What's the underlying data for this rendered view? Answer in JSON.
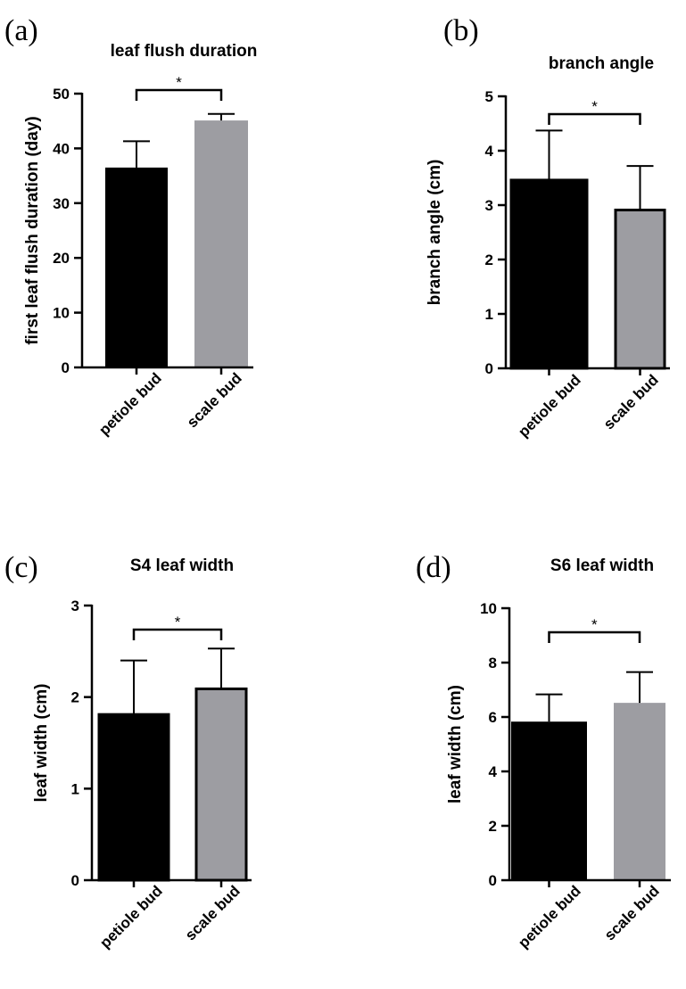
{
  "chart_data": [
    {
      "type": "bar",
      "panel": "(a)",
      "title": "leaf flush duration",
      "ylabel": "first leaf flush duration (day)",
      "xlabel": "",
      "categories": [
        "petiole bud",
        "scale bud"
      ],
      "values": [
        36.5,
        45.1
      ],
      "errors": [
        4.8,
        1.2
      ],
      "ylim": [
        0,
        50
      ],
      "yticks": [
        0,
        10,
        20,
        30,
        40,
        50
      ],
      "significance": "*",
      "colors": [
        "#000000",
        "#9d9da2"
      ],
      "bar_outline": false,
      "grid": false
    },
    {
      "type": "bar",
      "panel": "(b)",
      "title": "branch angle",
      "ylabel": "branch angle (cm)",
      "xlabel": "",
      "categories": [
        "petiole bud",
        "scale bud"
      ],
      "values": [
        3.46,
        2.91
      ],
      "errors": [
        0.91,
        0.81
      ],
      "ylim": [
        0,
        5
      ],
      "yticks": [
        0,
        1,
        2,
        3,
        4,
        5
      ],
      "significance": "*",
      "colors": [
        "#000000",
        "#9d9da2"
      ],
      "bar_outline": true,
      "grid": false
    },
    {
      "type": "bar",
      "panel": "(c)",
      "title": "S4 leaf width",
      "ylabel": "leaf width  (cm)",
      "xlabel": "",
      "categories": [
        "petiole bud",
        "scale bud"
      ],
      "values": [
        1.81,
        2.09
      ],
      "errors": [
        0.59,
        0.44
      ],
      "ylim": [
        0,
        3
      ],
      "yticks": [
        0,
        1,
        2,
        3
      ],
      "significance": "*",
      "colors": [
        "#000000",
        "#9d9da2"
      ],
      "bar_outline": true,
      "grid": false
    },
    {
      "type": "bar",
      "panel": "(d)",
      "title": "S6 leaf width",
      "ylabel": "leaf width  (cm)",
      "xlabel": "",
      "categories": [
        "petiole bud",
        "scale bud"
      ],
      "values": [
        5.83,
        6.52
      ],
      "errors": [
        1.0,
        1.13
      ],
      "ylim": [
        0,
        10
      ],
      "yticks": [
        0,
        2,
        4,
        6,
        8,
        10
      ],
      "significance": "*",
      "colors": [
        "#000000",
        "#9d9da2"
      ],
      "bar_outline": false,
      "grid": false
    }
  ]
}
